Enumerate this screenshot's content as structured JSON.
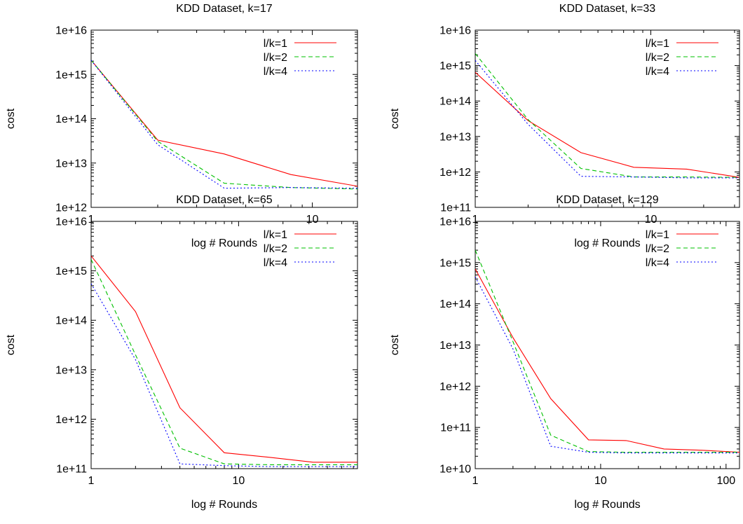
{
  "chart_data": [
    {
      "type": "line",
      "title": "KDD Dataset, k=17",
      "xlabel": "log # Rounds",
      "ylabel": "cost",
      "xscale": "log",
      "yscale": "log",
      "xlim": [
        1,
        16
      ],
      "ylim": [
        1000000000000.0,
        1e+16
      ],
      "xticks": [
        {
          "v": 1,
          "label": "1"
        },
        {
          "v": 10,
          "label": "10"
        }
      ],
      "yticks": [
        {
          "v": 1000000000000.0,
          "label": "1e+12"
        },
        {
          "v": 10000000000000.0,
          "label": "1e+13"
        },
        {
          "v": 100000000000000.0,
          "label": "1e+14"
        },
        {
          "v": 1000000000000000.0,
          "label": "1e+15"
        },
        {
          "v": 1e+16,
          "label": "1e+16"
        }
      ],
      "legend": "top-right",
      "series": [
        {
          "name": "l/k=1",
          "color": "#ff0000",
          "dash": "solid",
          "x": [
            1,
            2,
            4,
            8,
            16
          ],
          "y": [
            2100000000000000.0,
            33000000000000.0,
            16000000000000.0,
            5500000000000.0,
            3000000000000.0
          ]
        },
        {
          "name": "l/k=2",
          "color": "#00c000",
          "dash": "dashed",
          "x": [
            1,
            2,
            4,
            8,
            16
          ],
          "y": [
            2100000000000000.0,
            31000000000000.0,
            3500000000000.0,
            2800000000000.0,
            2600000000000.0
          ]
        },
        {
          "name": "l/k=4",
          "color": "#0000ff",
          "dash": "dotted",
          "x": [
            1,
            2,
            4,
            8,
            16
          ],
          "y": [
            2100000000000000.0,
            26000000000000.0,
            2700000000000.0,
            2800000000000.0,
            2700000000000.0
          ]
        }
      ]
    },
    {
      "type": "line",
      "title": "KDD Dataset, k=33",
      "xlabel": "log # Rounds",
      "ylabel": "cost",
      "xscale": "log",
      "yscale": "log",
      "xlim": [
        1,
        32
      ],
      "ylim": [
        100000000000.0,
        1e+16
      ],
      "xticks": [
        {
          "v": 1,
          "label": "1"
        },
        {
          "v": 10,
          "label": "10"
        }
      ],
      "yticks": [
        {
          "v": 100000000000.0,
          "label": "1e+11"
        },
        {
          "v": 1000000000000.0,
          "label": "1e+12"
        },
        {
          "v": 10000000000000.0,
          "label": "1e+13"
        },
        {
          "v": 100000000000000.0,
          "label": "1e+14"
        },
        {
          "v": 1000000000000000.0,
          "label": "1e+15"
        },
        {
          "v": 1e+16,
          "label": "1e+16"
        }
      ],
      "legend": "top-right",
      "series": [
        {
          "name": "l/k=1",
          "color": "#ff0000",
          "dash": "solid",
          "x": [
            1,
            2,
            4,
            8,
            16,
            32
          ],
          "y": [
            650000000000000.0,
            28000000000000.0,
            3500000000000.0,
            1350000000000.0,
            1200000000000.0,
            700000000000.0
          ]
        },
        {
          "name": "l/k=2",
          "color": "#00c000",
          "dash": "dashed",
          "x": [
            1,
            2,
            4,
            8,
            16,
            32
          ],
          "y": [
            2200000000000000.0,
            30000000000000.0,
            1250000000000.0,
            720000000000.0,
            720000000000.0,
            700000000000.0
          ]
        },
        {
          "name": "l/k=4",
          "color": "#0000ff",
          "dash": "dotted",
          "x": [
            1,
            2,
            4,
            8,
            16,
            32
          ],
          "y": [
            1400000000000000.0,
            22000000000000.0,
            750000000000.0,
            720000000000.0,
            680000000000.0,
            680000000000.0
          ]
        }
      ]
    },
    {
      "type": "line",
      "title": "KDD Dataset, k=65",
      "xlabel": "log # Rounds",
      "ylabel": "cost",
      "xscale": "log",
      "yscale": "log",
      "xlim": [
        1,
        64
      ],
      "ylim": [
        100000000000.0,
        1e+16
      ],
      "xticks": [
        {
          "v": 1,
          "label": "1"
        },
        {
          "v": 10,
          "label": "10"
        }
      ],
      "yticks": [
        {
          "v": 100000000000.0,
          "label": "1e+11"
        },
        {
          "v": 1000000000000.0,
          "label": "1e+12"
        },
        {
          "v": 10000000000000.0,
          "label": "1e+13"
        },
        {
          "v": 100000000000000.0,
          "label": "1e+14"
        },
        {
          "v": 1000000000000000.0,
          "label": "1e+15"
        },
        {
          "v": 1e+16,
          "label": "1e+16"
        }
      ],
      "legend": "top-right",
      "series": [
        {
          "name": "l/k=1",
          "color": "#ff0000",
          "dash": "solid",
          "x": [
            1,
            2,
            4,
            8,
            16,
            32,
            64
          ],
          "y": [
            2000000000000000.0,
            150000000000000.0,
            1700000000000.0,
            210000000000.0,
            170000000000.0,
            135000000000.0,
            135000000000.0
          ]
        },
        {
          "name": "l/k=2",
          "color": "#00c000",
          "dash": "dashed",
          "x": [
            1,
            2,
            4,
            8,
            16,
            32,
            64
          ],
          "y": [
            1700000000000000.0,
            20000000000000.0,
            260000000000.0,
            125000000000.0,
            120000000000.0,
            120000000000.0,
            120000000000.0
          ]
        },
        {
          "name": "l/k=4",
          "color": "#0000ff",
          "dash": "dotted",
          "x": [
            1,
            2,
            4,
            8,
            16,
            32,
            64
          ],
          "y": [
            550000000000000.0,
            16000000000000.0,
            125000000000.0,
            115000000000.0,
            110000000000.0,
            110000000000.0,
            110000000000.0
          ]
        }
      ]
    },
    {
      "type": "line",
      "title": "KDD Dataset, k=129",
      "xlabel": "log # Rounds",
      "ylabel": "cost",
      "xscale": "log",
      "yscale": "log",
      "xlim": [
        1,
        128
      ],
      "ylim": [
        10000000000.0,
        1e+16
      ],
      "xticks": [
        {
          "v": 1,
          "label": "1"
        },
        {
          "v": 10,
          "label": "10"
        },
        {
          "v": 100,
          "label": "100"
        }
      ],
      "yticks": [
        {
          "v": 10000000000.0,
          "label": "1e+10"
        },
        {
          "v": 100000000000.0,
          "label": "1e+11"
        },
        {
          "v": 1000000000000.0,
          "label": "1e+12"
        },
        {
          "v": 10000000000000.0,
          "label": "1e+13"
        },
        {
          "v": 100000000000000.0,
          "label": "1e+14"
        },
        {
          "v": 1000000000000000.0,
          "label": "1e+15"
        },
        {
          "v": 1e+16,
          "label": "1e+16"
        }
      ],
      "legend": "top-right",
      "series": [
        {
          "name": "l/k=1",
          "color": "#ff0000",
          "dash": "solid",
          "x": [
            1,
            2,
            4,
            8,
            16,
            32,
            64,
            128
          ],
          "y": [
            700000000000000.0,
            15000000000000.0,
            500000000000.0,
            50000000000.0,
            48000000000.0,
            30000000000.0,
            28000000000.0,
            25000000000.0
          ]
        },
        {
          "name": "l/k=2",
          "color": "#00c000",
          "dash": "dashed",
          "x": [
            1,
            2,
            4,
            8,
            16,
            32,
            64,
            128
          ],
          "y": [
            2000000000000000.0,
            12000000000000.0,
            65000000000.0,
            26000000000.0,
            25000000000.0,
            25000000000.0,
            25000000000.0,
            25000000000.0
          ]
        },
        {
          "name": "l/k=4",
          "color": "#0000ff",
          "dash": "dotted",
          "x": [
            1,
            2,
            4,
            8,
            16,
            32,
            64,
            128
          ],
          "y": [
            450000000000000.0,
            8000000000000.0,
            35000000000.0,
            25000000000.0,
            24000000000.0,
            24000000000.0,
            24000000000.0,
            24000000000.0
          ]
        }
      ]
    }
  ]
}
